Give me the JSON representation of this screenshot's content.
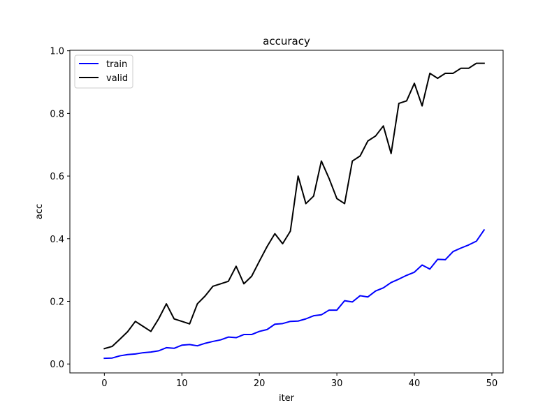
{
  "chart_data": {
    "type": "line",
    "title": "accuracy",
    "xlabel": "iter",
    "ylabel": "acc",
    "xlim": [
      -4.45,
      51.45
    ],
    "ylim": [
      -0.0285,
      1.0015
    ],
    "xticks": [
      0,
      10,
      20,
      30,
      40,
      50
    ],
    "xtick_labels": [
      "0",
      "10",
      "20",
      "30",
      "40",
      "50"
    ],
    "yticks": [
      0.0,
      0.2,
      0.4,
      0.6,
      0.8,
      1.0
    ],
    "ytick_labels": [
      "0.0",
      "0.2",
      "0.4",
      "0.6",
      "0.8",
      "1.0"
    ],
    "grid": false,
    "legend_position": "top-left",
    "x": [
      0,
      1,
      2,
      3,
      4,
      5,
      6,
      7,
      8,
      9,
      10,
      11,
      12,
      13,
      14,
      15,
      16,
      17,
      18,
      19,
      20,
      21,
      22,
      23,
      24,
      25,
      26,
      27,
      28,
      29,
      30,
      31,
      32,
      33,
      34,
      35,
      36,
      37,
      38,
      39,
      40,
      41,
      42,
      43,
      44,
      45,
      46,
      47,
      48,
      49
    ],
    "series": [
      {
        "name": "train",
        "color": "#0000ff",
        "values": [
          0.018,
          0.019,
          0.026,
          0.03,
          0.032,
          0.036,
          0.038,
          0.042,
          0.052,
          0.05,
          0.06,
          0.062,
          0.058,
          0.066,
          0.072,
          0.077,
          0.086,
          0.084,
          0.094,
          0.094,
          0.104,
          0.11,
          0.127,
          0.129,
          0.136,
          0.137,
          0.144,
          0.154,
          0.157,
          0.172,
          0.172,
          0.202,
          0.198,
          0.218,
          0.214,
          0.233,
          0.243,
          0.26,
          0.271,
          0.283,
          0.293,
          0.316,
          0.303,
          0.334,
          0.333,
          0.359,
          0.37,
          0.38,
          0.392,
          0.428
        ]
      },
      {
        "name": "valid",
        "color": "#000000",
        "values": [
          0.049,
          0.056,
          0.079,
          0.103,
          0.136,
          0.12,
          0.104,
          0.144,
          0.192,
          0.144,
          0.136,
          0.128,
          0.192,
          0.217,
          0.248,
          0.256,
          0.264,
          0.312,
          0.256,
          0.28,
          0.328,
          0.375,
          0.416,
          0.384,
          0.424,
          0.6,
          0.512,
          0.536,
          0.648,
          0.592,
          0.528,
          0.512,
          0.648,
          0.664,
          0.712,
          0.728,
          0.76,
          0.672,
          0.832,
          0.84,
          0.896,
          0.824,
          0.928,
          0.912,
          0.928,
          0.928,
          0.944,
          0.944,
          0.96,
          0.96
        ]
      }
    ]
  }
}
